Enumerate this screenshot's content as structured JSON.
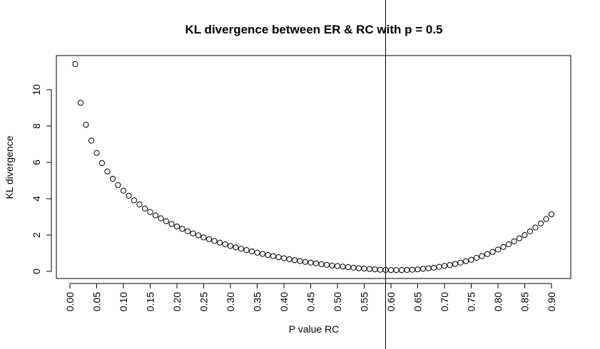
{
  "chart_data": {
    "type": "scatter",
    "title": "KL divergence between ER & RC with p = 0.5",
    "xlabel": "P value RC",
    "ylabel": "KL divergence",
    "xlim": [
      0.01,
      0.9
    ],
    "ylim": [
      0,
      11.41
    ],
    "grid": false,
    "x_ticks": [
      0.0,
      0.05,
      0.1,
      0.15,
      0.2,
      0.25,
      0.3,
      0.35,
      0.4,
      0.45,
      0.5,
      0.55,
      0.6,
      0.65,
      0.7,
      0.75,
      0.8,
      0.85,
      0.9
    ],
    "x_tick_labels": [
      "0.00",
      "0.05",
      "0.10",
      "0.15",
      "0.20",
      "0.25",
      "0.30",
      "0.35",
      "0.40",
      "0.45",
      "0.50",
      "0.55",
      "0.60",
      "0.65",
      "0.70",
      "0.75",
      "0.80",
      "0.85",
      "0.90"
    ],
    "y_ticks": [
      0,
      2,
      4,
      6,
      8,
      10
    ],
    "y_tick_labels": [
      "0",
      "2",
      "4",
      "6",
      "8",
      "10"
    ],
    "vline": 0.59,
    "point_style": "open-circle",
    "x": [
      0.01,
      0.02,
      0.03,
      0.04,
      0.05,
      0.06,
      0.07,
      0.08,
      0.09,
      0.1,
      0.11,
      0.12,
      0.13,
      0.14,
      0.15,
      0.16,
      0.17,
      0.18,
      0.19,
      0.2,
      0.21,
      0.22,
      0.23,
      0.24,
      0.25,
      0.26,
      0.27,
      0.28,
      0.29,
      0.3,
      0.31,
      0.32,
      0.33,
      0.34,
      0.35,
      0.36,
      0.37,
      0.38,
      0.39,
      0.4,
      0.41,
      0.42,
      0.43,
      0.44,
      0.45,
      0.46,
      0.47,
      0.48,
      0.49,
      0.5,
      0.51,
      0.52,
      0.53,
      0.54,
      0.55,
      0.56,
      0.57,
      0.58,
      0.59,
      0.6,
      0.61,
      0.62,
      0.63,
      0.64,
      0.65,
      0.66,
      0.67,
      0.68,
      0.69,
      0.7,
      0.71,
      0.72,
      0.73,
      0.74,
      0.75,
      0.76,
      0.77,
      0.78,
      0.79,
      0.8,
      0.81,
      0.82,
      0.83,
      0.84,
      0.85,
      0.86,
      0.87,
      0.88,
      0.89,
      0.9
    ],
    "y": [
      11.41,
      9.28,
      8.07,
      7.2,
      6.52,
      5.96,
      5.5,
      5.1,
      4.75,
      4.44,
      4.16,
      3.91,
      3.68,
      3.46,
      3.27,
      3.08,
      2.92,
      2.76,
      2.61,
      2.47,
      2.34,
      2.21,
      2.09,
      1.98,
      1.87,
      1.77,
      1.67,
      1.58,
      1.49,
      1.4,
      1.32,
      1.24,
      1.17,
      1.1,
      1.03,
      0.96,
      0.9,
      0.84,
      0.78,
      0.72,
      0.67,
      0.62,
      0.57,
      0.52,
      0.48,
      0.44,
      0.4,
      0.36,
      0.32,
      0.29,
      0.26,
      0.23,
      0.2,
      0.17,
      0.15,
      0.13,
      0.11,
      0.09,
      0.08,
      0.07,
      0.07,
      0.07,
      0.08,
      0.09,
      0.11,
      0.14,
      0.17,
      0.2,
      0.25,
      0.3,
      0.35,
      0.41,
      0.48,
      0.56,
      0.64,
      0.74,
      0.84,
      0.95,
      1.07,
      1.2,
      1.34,
      1.49,
      1.65,
      1.82,
      2.0,
      2.2,
      2.41,
      2.64,
      2.88,
      3.14
    ]
  }
}
